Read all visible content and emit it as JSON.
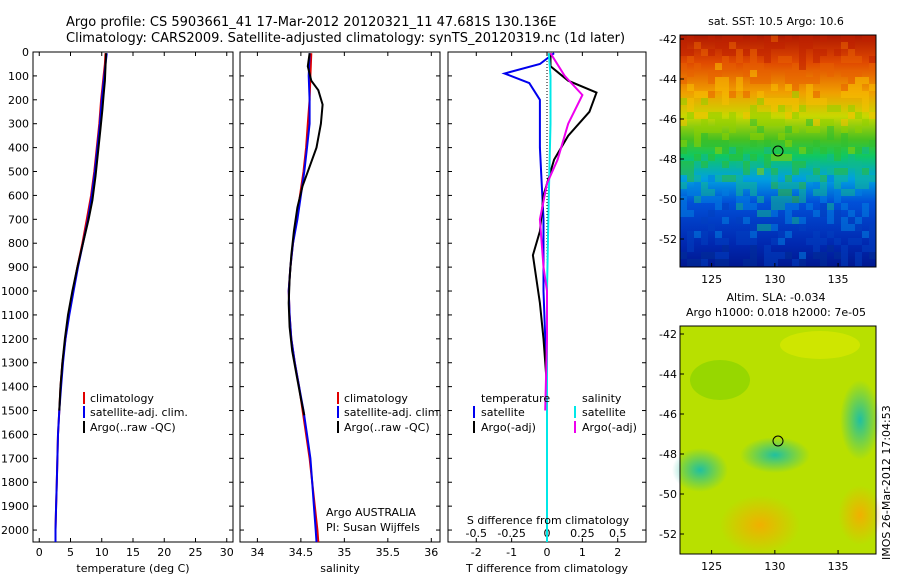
{
  "header": {
    "line1": "Argo profile: CS 5903661_41 17-Mar-2012 20120321_11 47.681S 130.136E",
    "line2": "Climatology: CARS2009. Satellite-adjusted climatology: synTS_20120319.nc (1d later)"
  },
  "colors": {
    "climatology": "#e00000",
    "satellite": "#0000ee",
    "argo": "#000000",
    "sal_satellite": "#00e8e8",
    "sal_argo": "#ee00ee"
  },
  "chart_data": [
    {
      "type": "line",
      "xlabel": "temperature (deg C)",
      "xlim": [
        -1,
        31
      ],
      "ylim": [
        2050,
        0
      ],
      "xticks": [
        0,
        5,
        10,
        15,
        20,
        25,
        30
      ],
      "yticks": [
        0,
        100,
        200,
        300,
        400,
        500,
        600,
        700,
        800,
        900,
        1000,
        1100,
        1200,
        1300,
        1400,
        1500,
        1600,
        1700,
        1800,
        1900,
        2000
      ],
      "legend": [
        "climatology",
        "satellite-adj. clim.",
        "Argo(..raw -QC)"
      ],
      "series": [
        {
          "name": "climatology",
          "color": "#e00000",
          "points": [
            [
              10.6,
              5
            ],
            [
              10.5,
              50
            ],
            [
              10.3,
              100
            ],
            [
              10.1,
              150
            ],
            [
              9.9,
              200
            ],
            [
              9.6,
              300
            ],
            [
              9.2,
              400
            ],
            [
              8.8,
              500
            ],
            [
              8.3,
              600
            ],
            [
              7.6,
              700
            ],
            [
              6.9,
              800
            ],
            [
              6.1,
              900
            ],
            [
              5.4,
              1000
            ],
            [
              4.7,
              1100
            ],
            [
              4.2,
              1200
            ],
            [
              3.7,
              1300
            ],
            [
              3.4,
              1400
            ],
            [
              3.2,
              1500
            ],
            [
              3.0,
              1600
            ],
            [
              2.9,
              1700
            ],
            [
              2.8,
              1800
            ],
            [
              2.7,
              1900
            ],
            [
              2.6,
              2000
            ],
            [
              2.6,
              2050
            ]
          ]
        },
        {
          "name": "satellite-adj. clim.",
          "color": "#0000ee",
          "points": [
            [
              10.8,
              5
            ],
            [
              10.6,
              50
            ],
            [
              10.4,
              100
            ],
            [
              10.2,
              150
            ],
            [
              10.0,
              200
            ],
            [
              9.7,
              300
            ],
            [
              9.3,
              400
            ],
            [
              8.9,
              500
            ],
            [
              8.4,
              600
            ],
            [
              7.8,
              700
            ],
            [
              7.0,
              800
            ],
            [
              6.2,
              900
            ],
            [
              5.5,
              1000
            ],
            [
              4.8,
              1100
            ],
            [
              4.2,
              1200
            ],
            [
              3.8,
              1300
            ],
            [
              3.5,
              1400
            ],
            [
              3.2,
              1500
            ],
            [
              3.0,
              1600
            ],
            [
              2.9,
              1700
            ],
            [
              2.8,
              1800
            ],
            [
              2.7,
              1900
            ],
            [
              2.6,
              2000
            ],
            [
              2.6,
              2050
            ]
          ]
        },
        {
          "name": "Argo(..raw -QC)",
          "color": "#000000",
          "points": [
            [
              10.7,
              5
            ],
            [
              10.6,
              60
            ],
            [
              10.5,
              120
            ],
            [
              10.3,
              180
            ],
            [
              10.1,
              240
            ],
            [
              9.8,
              320
            ],
            [
              9.4,
              420
            ],
            [
              9.0,
              520
            ],
            [
              8.5,
              620
            ],
            [
              7.9,
              700
            ],
            [
              7.0,
              800
            ],
            [
              6.1,
              900
            ],
            [
              5.3,
              1000
            ],
            [
              4.6,
              1100
            ],
            [
              4.1,
              1200
            ],
            [
              3.7,
              1300
            ],
            [
              3.4,
              1400
            ],
            [
              3.2,
              1500
            ]
          ]
        }
      ]
    },
    {
      "type": "line",
      "xlabel": "salinity",
      "xlim": [
        33.8,
        36.1
      ],
      "ylim": [
        2050,
        0
      ],
      "xticks": [
        34,
        34.5,
        35,
        35.5,
        36
      ],
      "legend": [
        "climatology",
        "satellite-adj. clim.",
        "Argo(..raw -QC)"
      ],
      "annotation": [
        "Argo AUSTRALIA",
        "PI: Susan Wijffels"
      ],
      "series": [
        {
          "name": "climatology",
          "color": "#e00000",
          "points": [
            [
              34.62,
              5
            ],
            [
              34.61,
              100
            ],
            [
              34.6,
              200
            ],
            [
              34.58,
              300
            ],
            [
              34.56,
              400
            ],
            [
              34.53,
              500
            ],
            [
              34.49,
              600
            ],
            [
              34.45,
              700
            ],
            [
              34.41,
              800
            ],
            [
              34.38,
              900
            ],
            [
              34.36,
              1000
            ],
            [
              34.37,
              1100
            ],
            [
              34.39,
              1200
            ],
            [
              34.43,
              1300
            ],
            [
              34.48,
              1400
            ],
            [
              34.52,
              1500
            ],
            [
              34.56,
              1600
            ],
            [
              34.6,
              1700
            ],
            [
              34.63,
              1800
            ],
            [
              34.66,
              1900
            ],
            [
              34.69,
              2000
            ],
            [
              34.7,
              2050
            ]
          ]
        },
        {
          "name": "satellite-adj. clim.",
          "color": "#0000ee",
          "points": [
            [
              34.6,
              5
            ],
            [
              34.59,
              100
            ],
            [
              34.6,
              200
            ],
            [
              34.6,
              300
            ],
            [
              34.57,
              400
            ],
            [
              34.54,
              500
            ],
            [
              34.5,
              600
            ],
            [
              34.46,
              700
            ],
            [
              34.41,
              800
            ],
            [
              34.38,
              900
            ],
            [
              34.36,
              1000
            ],
            [
              34.37,
              1100
            ],
            [
              34.39,
              1200
            ],
            [
              34.43,
              1300
            ],
            [
              34.48,
              1400
            ],
            [
              34.53,
              1500
            ],
            [
              34.57,
              1600
            ],
            [
              34.61,
              1700
            ],
            [
              34.63,
              1800
            ],
            [
              34.65,
              1900
            ],
            [
              34.67,
              2000
            ],
            [
              34.68,
              2050
            ]
          ]
        },
        {
          "name": "Argo(..raw -QC)",
          "color": "#000000",
          "points": [
            [
              34.6,
              5
            ],
            [
              34.58,
              60
            ],
            [
              34.62,
              120
            ],
            [
              34.7,
              160
            ],
            [
              34.75,
              220
            ],
            [
              34.73,
              300
            ],
            [
              34.68,
              400
            ],
            [
              34.6,
              480
            ],
            [
              34.52,
              560
            ],
            [
              34.46,
              650
            ],
            [
              34.42,
              750
            ],
            [
              34.39,
              850
            ],
            [
              34.37,
              950
            ],
            [
              34.36,
              1050
            ],
            [
              34.37,
              1150
            ],
            [
              34.4,
              1250
            ],
            [
              34.45,
              1350
            ],
            [
              34.5,
              1450
            ],
            [
              34.54,
              1520
            ]
          ]
        }
      ]
    },
    {
      "type": "line",
      "xlabel": "T difference from climatology",
      "xlabel_top": "S difference from climatology",
      "xlim": [
        -2.8,
        2.8
      ],
      "ylim": [
        2050,
        0
      ],
      "xticks": [
        -2,
        -1,
        0,
        1,
        2
      ],
      "xticks_top": [
        "-0.5",
        "-0.25",
        "0",
        "0.25",
        "0.5"
      ],
      "legend_left_title": "temperature",
      "legend_left": [
        "satellite",
        "Argo(-adj)"
      ],
      "legend_right_title": "salinity",
      "legend_right": [
        "satellite",
        "Argo(-adj)"
      ],
      "series": [
        {
          "name": "temperature satellite",
          "color": "#0000ee",
          "points": [
            [
              0.2,
              5
            ],
            [
              -0.2,
              50
            ],
            [
              -1.2,
              90
            ],
            [
              -0.5,
              130
            ],
            [
              -0.2,
              200
            ],
            [
              -0.2,
              400
            ],
            [
              -0.1,
              700
            ],
            [
              -0.1,
              1000
            ],
            [
              0,
              1400
            ],
            [
              0,
              2050
            ]
          ]
        },
        {
          "name": "temperature Argo(-adj)",
          "color": "#000000",
          "points": [
            [
              0.1,
              5
            ],
            [
              0.1,
              60
            ],
            [
              0.6,
              120
            ],
            [
              1.4,
              170
            ],
            [
              1.2,
              250
            ],
            [
              0.6,
              350
            ],
            [
              0.2,
              450
            ],
            [
              -0.1,
              600
            ],
            [
              -0.2,
              750
            ],
            [
              -0.4,
              850
            ],
            [
              -0.3,
              950
            ],
            [
              -0.2,
              1050
            ],
            [
              -0.1,
              1200
            ],
            [
              0,
              1400
            ],
            [
              0,
              1500
            ]
          ]
        },
        {
          "name": "salinity satellite",
          "color": "#00e8e8",
          "points": [
            [
              0.05,
              5
            ],
            [
              0.1,
              100
            ],
            [
              0.1,
              300
            ],
            [
              0.05,
              600
            ],
            [
              0,
              1000
            ],
            [
              0,
              1400
            ],
            [
              0,
              2050
            ]
          ]
        },
        {
          "name": "salinity Argo(-adj)",
          "color": "#ee00ee",
          "points": [
            [
              0.1,
              5
            ],
            [
              0.5,
              100
            ],
            [
              1.0,
              180
            ],
            [
              0.6,
              300
            ],
            [
              0.3,
              450
            ],
            [
              0,
              550
            ],
            [
              -0.2,
              700
            ],
            [
              -0.1,
              900
            ],
            [
              0,
              1000
            ],
            [
              0,
              1200
            ],
            [
              -0.05,
              1500
            ]
          ]
        }
      ]
    },
    {
      "type": "heatmap",
      "title": "sat. SST: 10.5 Argo: 10.6",
      "xticks": [
        125,
        130,
        135
      ],
      "yticks": [
        -42,
        -44,
        -46,
        -48,
        -50,
        -52
      ],
      "marker": [
        130.136,
        -47.681
      ]
    },
    {
      "type": "heatmap",
      "title": "Altim. SLA: -0.034",
      "subtitle": "Argo h1000: 0.018 h2000: 7e-05",
      "xticks": [
        125,
        130,
        135
      ],
      "yticks": [
        -42,
        -44,
        -46,
        -48,
        -50,
        -52
      ],
      "marker": [
        130.136,
        -47.681
      ]
    }
  ],
  "side_stamp": "IMOS 26-Mar-2012 17:04:53"
}
